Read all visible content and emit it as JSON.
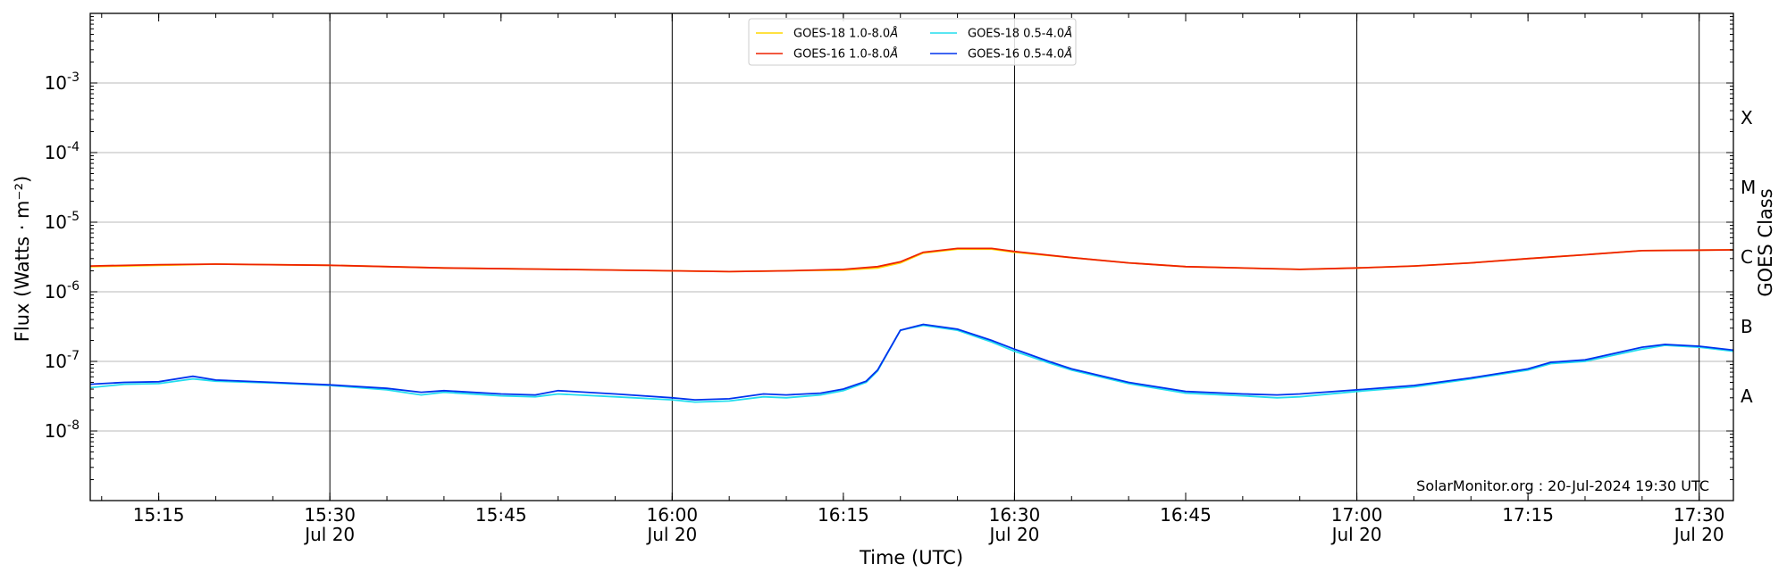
{
  "chart_data": {
    "type": "line",
    "xlabel": "Time (UTC)",
    "ylabel": "Flux (Watts · m⁻²)",
    "ylabel_right": "GOES Class",
    "yscale": "log",
    "xlim": [
      "15:09",
      "17:33"
    ],
    "ylim": [
      1e-09,
      0.01
    ],
    "grid": "horizontal at decades, vertical at half-hour",
    "legend_position": "top-center",
    "y_ticks": [
      {
        "value": 0.001,
        "exp": "-3"
      },
      {
        "value": 0.0001,
        "exp": "-4"
      },
      {
        "value": 1e-05,
        "exp": "-5"
      },
      {
        "value": 1e-06,
        "exp": "-6"
      },
      {
        "value": 1e-07,
        "exp": "-7"
      },
      {
        "value": 1e-08,
        "exp": "-8"
      }
    ],
    "x_ticks": [
      {
        "time": "15:15",
        "label": "15:15",
        "date": ""
      },
      {
        "time": "15:30",
        "label": "15:30",
        "date": "Jul 20"
      },
      {
        "time": "15:45",
        "label": "15:45",
        "date": ""
      },
      {
        "time": "16:00",
        "label": "16:00",
        "date": "Jul 20"
      },
      {
        "time": "16:15",
        "label": "16:15",
        "date": ""
      },
      {
        "time": "16:30",
        "label": "16:30",
        "date": "Jul 20"
      },
      {
        "time": "16:45",
        "label": "16:45",
        "date": ""
      },
      {
        "time": "17:00",
        "label": "17:00",
        "date": "Jul 20"
      },
      {
        "time": "17:15",
        "label": "17:15",
        "date": ""
      },
      {
        "time": "17:30",
        "label": "17:30",
        "date": "Jul 20"
      }
    ],
    "goes_classes": [
      {
        "label": "A",
        "value": 3.16e-08
      },
      {
        "label": "B",
        "value": 3.16e-07
      },
      {
        "label": "C",
        "value": 3.16e-06
      },
      {
        "label": "M",
        "value": 3.16e-05
      },
      {
        "label": "X",
        "value": 0.000316
      }
    ],
    "credit": "SolarMonitor.org : 20-Jul-2024 19:30 UTC",
    "series": [
      {
        "name": "GOES-18 1.0-8.0",
        "color": "#ffd700",
        "points": [
          [
            "15:09",
            2.3e-06
          ],
          [
            "15:15",
            2.4e-06
          ],
          [
            "15:20",
            2.5e-06
          ],
          [
            "15:30",
            2.4e-06
          ],
          [
            "15:40",
            2.2e-06
          ],
          [
            "15:50",
            2.1e-06
          ],
          [
            "16:00",
            2e-06
          ],
          [
            "16:05",
            1.95e-06
          ],
          [
            "16:10",
            2e-06
          ],
          [
            "16:15",
            2.05e-06
          ],
          [
            "16:18",
            2.2e-06
          ],
          [
            "16:20",
            2.6e-06
          ],
          [
            "16:22",
            3.6e-06
          ],
          [
            "16:25",
            4.1e-06
          ],
          [
            "16:28",
            4.1e-06
          ],
          [
            "16:30",
            3.7e-06
          ],
          [
            "16:35",
            3.1e-06
          ],
          [
            "16:40",
            2.6e-06
          ],
          [
            "16:45",
            2.3e-06
          ],
          [
            "16:55",
            2.1e-06
          ],
          [
            "17:00",
            2.2e-06
          ],
          [
            "17:05",
            2.35e-06
          ],
          [
            "17:10",
            2.6e-06
          ],
          [
            "17:15",
            3e-06
          ],
          [
            "17:20",
            3.4e-06
          ],
          [
            "17:25",
            3.9e-06
          ],
          [
            "17:33",
            4e-06
          ]
        ]
      },
      {
        "name": "GOES-16 1.0-8.0",
        "color": "#ee2200",
        "points": [
          [
            "15:09",
            2.35e-06
          ],
          [
            "15:15",
            2.45e-06
          ],
          [
            "15:20",
            2.5e-06
          ],
          [
            "15:30",
            2.4e-06
          ],
          [
            "15:40",
            2.2e-06
          ],
          [
            "15:50",
            2.1e-06
          ],
          [
            "16:00",
            2e-06
          ],
          [
            "16:05",
            1.95e-06
          ],
          [
            "16:10",
            2e-06
          ],
          [
            "16:15",
            2.1e-06
          ],
          [
            "16:18",
            2.3e-06
          ],
          [
            "16:20",
            2.7e-06
          ],
          [
            "16:22",
            3.7e-06
          ],
          [
            "16:25",
            4.2e-06
          ],
          [
            "16:28",
            4.2e-06
          ],
          [
            "16:30",
            3.8e-06
          ],
          [
            "16:35",
            3.1e-06
          ],
          [
            "16:40",
            2.6e-06
          ],
          [
            "16:45",
            2.3e-06
          ],
          [
            "16:55",
            2.1e-06
          ],
          [
            "17:00",
            2.2e-06
          ],
          [
            "17:05",
            2.35e-06
          ],
          [
            "17:10",
            2.6e-06
          ],
          [
            "17:15",
            3e-06
          ],
          [
            "17:20",
            3.4e-06
          ],
          [
            "17:25",
            3.9e-06
          ],
          [
            "17:33",
            4e-06
          ]
        ]
      },
      {
        "name": "GOES-18 0.5-4.0",
        "color": "#22ddee",
        "points": [
          [
            "15:09",
            4.2e-08
          ],
          [
            "15:12",
            4.7e-08
          ],
          [
            "15:15",
            4.8e-08
          ],
          [
            "15:18",
            5.6e-08
          ],
          [
            "15:20",
            5.2e-08
          ],
          [
            "15:25",
            4.9e-08
          ],
          [
            "15:30",
            4.5e-08
          ],
          [
            "15:35",
            3.9e-08
          ],
          [
            "15:38",
            3.3e-08
          ],
          [
            "15:40",
            3.6e-08
          ],
          [
            "15:45",
            3.2e-08
          ],
          [
            "15:48",
            3.1e-08
          ],
          [
            "15:50",
            3.4e-08
          ],
          [
            "15:55",
            3.1e-08
          ],
          [
            "16:00",
            2.8e-08
          ],
          [
            "16:02",
            2.6e-08
          ],
          [
            "16:05",
            2.7e-08
          ],
          [
            "16:08",
            3.1e-08
          ],
          [
            "16:10",
            3e-08
          ],
          [
            "16:13",
            3.3e-08
          ],
          [
            "16:15",
            3.8e-08
          ],
          [
            "16:17",
            5e-08
          ],
          [
            "16:18",
            7.3e-08
          ],
          [
            "16:20",
            2.8e-07
          ],
          [
            "16:22",
            3.3e-07
          ],
          [
            "16:25",
            2.8e-07
          ],
          [
            "16:28",
            1.9e-07
          ],
          [
            "16:30",
            1.4e-07
          ],
          [
            "16:33",
            9.5e-08
          ],
          [
            "16:35",
            7.5e-08
          ],
          [
            "16:40",
            4.8e-08
          ],
          [
            "16:45",
            3.5e-08
          ],
          [
            "16:50",
            3.2e-08
          ],
          [
            "16:53",
            3e-08
          ],
          [
            "16:55",
            3.1e-08
          ],
          [
            "17:00",
            3.7e-08
          ],
          [
            "17:05",
            4.3e-08
          ],
          [
            "17:10",
            5.6e-08
          ],
          [
            "17:15",
            7.5e-08
          ],
          [
            "17:17",
            9.3e-08
          ],
          [
            "17:20",
            1e-07
          ],
          [
            "17:25",
            1.5e-07
          ],
          [
            "17:27",
            1.7e-07
          ],
          [
            "17:30",
            1.6e-07
          ],
          [
            "17:33",
            1.4e-07
          ]
        ]
      },
      {
        "name": "GOES-16 0.5-4.0",
        "color": "#0033ee",
        "points": [
          [
            "15:09",
            4.7e-08
          ],
          [
            "15:12",
            5e-08
          ],
          [
            "15:15",
            5.1e-08
          ],
          [
            "15:18",
            6.1e-08
          ],
          [
            "15:20",
            5.4e-08
          ],
          [
            "15:25",
            5e-08
          ],
          [
            "15:30",
            4.6e-08
          ],
          [
            "15:35",
            4.1e-08
          ],
          [
            "15:38",
            3.6e-08
          ],
          [
            "15:40",
            3.8e-08
          ],
          [
            "15:45",
            3.4e-08
          ],
          [
            "15:48",
            3.3e-08
          ],
          [
            "15:50",
            3.8e-08
          ],
          [
            "15:55",
            3.4e-08
          ],
          [
            "16:00",
            3e-08
          ],
          [
            "16:02",
            2.8e-08
          ],
          [
            "16:05",
            2.9e-08
          ],
          [
            "16:08",
            3.4e-08
          ],
          [
            "16:10",
            3.3e-08
          ],
          [
            "16:13",
            3.5e-08
          ],
          [
            "16:15",
            4e-08
          ],
          [
            "16:17",
            5.2e-08
          ],
          [
            "16:18",
            7.5e-08
          ],
          [
            "16:20",
            2.8e-07
          ],
          [
            "16:22",
            3.4e-07
          ],
          [
            "16:25",
            2.9e-07
          ],
          [
            "16:28",
            2e-07
          ],
          [
            "16:30",
            1.5e-07
          ],
          [
            "16:33",
            1e-07
          ],
          [
            "16:35",
            7.8e-08
          ],
          [
            "16:40",
            5e-08
          ],
          [
            "16:45",
            3.7e-08
          ],
          [
            "16:50",
            3.4e-08
          ],
          [
            "16:53",
            3.3e-08
          ],
          [
            "16:55",
            3.4e-08
          ],
          [
            "17:00",
            3.9e-08
          ],
          [
            "17:05",
            4.5e-08
          ],
          [
            "17:10",
            5.8e-08
          ],
          [
            "17:15",
            7.8e-08
          ],
          [
            "17:17",
            9.7e-08
          ],
          [
            "17:20",
            1.05e-07
          ],
          [
            "17:25",
            1.6e-07
          ],
          [
            "17:27",
            1.75e-07
          ],
          [
            "17:30",
            1.65e-07
          ],
          [
            "17:33",
            1.45e-07
          ]
        ]
      }
    ]
  }
}
